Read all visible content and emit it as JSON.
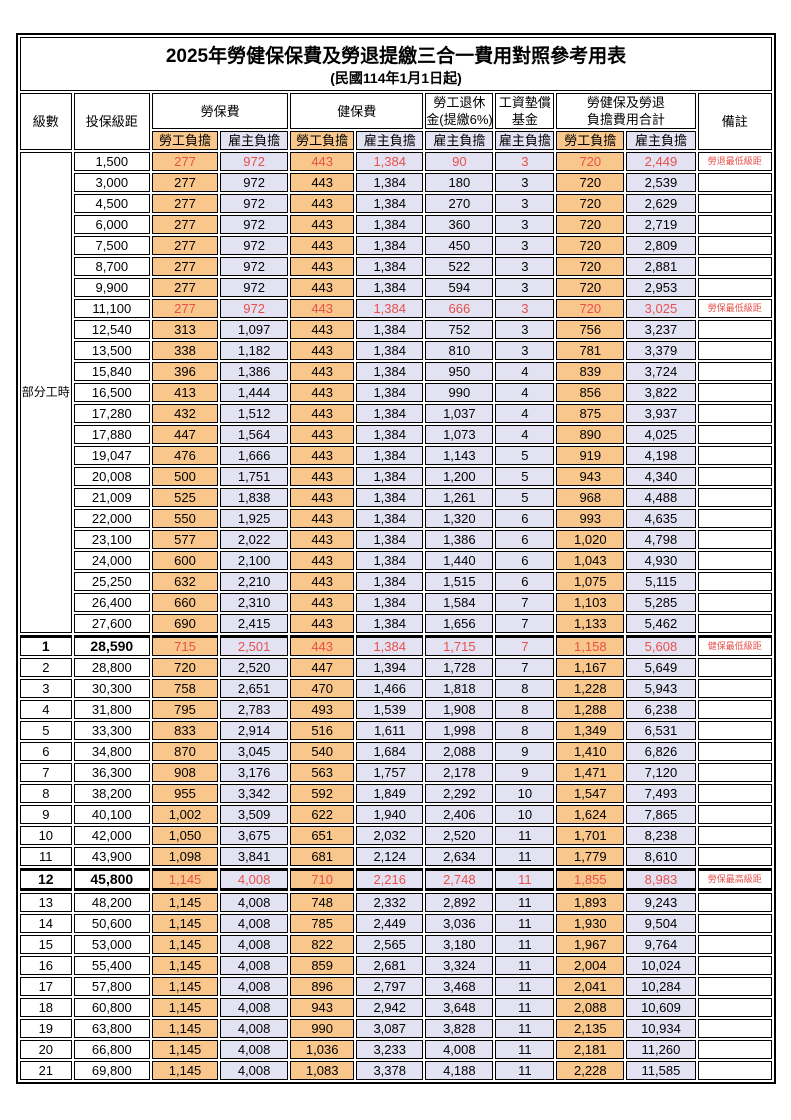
{
  "title": "2025年勞健保保費及勞退提繳三合一費用對照參考用表",
  "subtitle": "(民國114年1月1日起)",
  "colors": {
    "employee_bg": "#F9C78C",
    "employer_bg": "#E3E2F3",
    "highlight_text": "#E8504A"
  },
  "header": {
    "level": "級數",
    "bracket": "投保級距",
    "labor_fee": "勞保費",
    "health_fee": "健保費",
    "pension_line1": "勞工退休",
    "pension_line2": "金(提繳6%)",
    "wage_fund_line1": "工資墊償",
    "wage_fund_line2": "基金",
    "total_line1": "勞健保及勞退",
    "total_line2": "負擔費用合計",
    "remark": "備註",
    "employee": "勞工負擔",
    "employer": "雇主負擔"
  },
  "value_col_types": [
    "employee",
    "employer",
    "employee",
    "employer",
    "employer",
    "employer",
    "employee",
    "employer"
  ],
  "part_time_label": "部分工時",
  "rows": [
    {
      "level": "部分工時",
      "level_rowspan": 23,
      "bracket": "1,500",
      "values": [
        "277",
        "972",
        "443",
        "1,384",
        "90",
        "3",
        "720",
        "2,449"
      ],
      "remark": "勞退最低級距",
      "highlight": true
    },
    {
      "bracket": "3,000",
      "values": [
        "277",
        "972",
        "443",
        "1,384",
        "180",
        "3",
        "720",
        "2,539"
      ]
    },
    {
      "bracket": "4,500",
      "values": [
        "277",
        "972",
        "443",
        "1,384",
        "270",
        "3",
        "720",
        "2,629"
      ]
    },
    {
      "bracket": "6,000",
      "values": [
        "277",
        "972",
        "443",
        "1,384",
        "360",
        "3",
        "720",
        "2,719"
      ]
    },
    {
      "bracket": "7,500",
      "values": [
        "277",
        "972",
        "443",
        "1,384",
        "450",
        "3",
        "720",
        "2,809"
      ]
    },
    {
      "bracket": "8,700",
      "values": [
        "277",
        "972",
        "443",
        "1,384",
        "522",
        "3",
        "720",
        "2,881"
      ]
    },
    {
      "bracket": "9,900",
      "values": [
        "277",
        "972",
        "443",
        "1,384",
        "594",
        "3",
        "720",
        "2,953"
      ]
    },
    {
      "bracket": "11,100",
      "values": [
        "277",
        "972",
        "443",
        "1,384",
        "666",
        "3",
        "720",
        "3,025"
      ],
      "remark": "勞保最低級距",
      "highlight": true
    },
    {
      "bracket": "12,540",
      "values": [
        "313",
        "1,097",
        "443",
        "1,384",
        "752",
        "3",
        "756",
        "3,237"
      ]
    },
    {
      "bracket": "13,500",
      "values": [
        "338",
        "1,182",
        "443",
        "1,384",
        "810",
        "3",
        "781",
        "3,379"
      ]
    },
    {
      "bracket": "15,840",
      "values": [
        "396",
        "1,386",
        "443",
        "1,384",
        "950",
        "4",
        "839",
        "3,724"
      ]
    },
    {
      "bracket": "16,500",
      "values": [
        "413",
        "1,444",
        "443",
        "1,384",
        "990",
        "4",
        "856",
        "3,822"
      ]
    },
    {
      "bracket": "17,280",
      "values": [
        "432",
        "1,512",
        "443",
        "1,384",
        "1,037",
        "4",
        "875",
        "3,937"
      ]
    },
    {
      "bracket": "17,880",
      "values": [
        "447",
        "1,564",
        "443",
        "1,384",
        "1,073",
        "4",
        "890",
        "4,025"
      ]
    },
    {
      "bracket": "19,047",
      "values": [
        "476",
        "1,666",
        "443",
        "1,384",
        "1,143",
        "5",
        "919",
        "4,198"
      ]
    },
    {
      "bracket": "20,008",
      "values": [
        "500",
        "1,751",
        "443",
        "1,384",
        "1,200",
        "5",
        "943",
        "4,340"
      ]
    },
    {
      "bracket": "21,009",
      "values": [
        "525",
        "1,838",
        "443",
        "1,384",
        "1,261",
        "5",
        "968",
        "4,488"
      ]
    },
    {
      "bracket": "22,000",
      "values": [
        "550",
        "1,925",
        "443",
        "1,384",
        "1,320",
        "6",
        "993",
        "4,635"
      ]
    },
    {
      "bracket": "23,100",
      "values": [
        "577",
        "2,022",
        "443",
        "1,384",
        "1,386",
        "6",
        "1,020",
        "4,798"
      ]
    },
    {
      "bracket": "24,000",
      "values": [
        "600",
        "2,100",
        "443",
        "1,384",
        "1,440",
        "6",
        "1,043",
        "4,930"
      ]
    },
    {
      "bracket": "25,250",
      "values": [
        "632",
        "2,210",
        "443",
        "1,384",
        "1,515",
        "6",
        "1,075",
        "5,115"
      ]
    },
    {
      "bracket": "26,400",
      "values": [
        "660",
        "2,310",
        "443",
        "1,384",
        "1,584",
        "7",
        "1,103",
        "5,285"
      ]
    },
    {
      "bracket": "27,600",
      "values": [
        "690",
        "2,415",
        "443",
        "1,384",
        "1,656",
        "7",
        "1,133",
        "5,462"
      ]
    },
    {
      "level": "1",
      "bracket": "28,590",
      "values": [
        "715",
        "2,501",
        "443",
        "1,384",
        "1,715",
        "7",
        "1,158",
        "5,608"
      ],
      "remark": "健保最低級距",
      "highlight": true,
      "bold": true,
      "thick_top": true
    },
    {
      "level": "2",
      "bracket": "28,800",
      "values": [
        "720",
        "2,520",
        "447",
        "1,394",
        "1,728",
        "7",
        "1,167",
        "5,649"
      ]
    },
    {
      "level": "3",
      "bracket": "30,300",
      "values": [
        "758",
        "2,651",
        "470",
        "1,466",
        "1,818",
        "8",
        "1,228",
        "5,943"
      ]
    },
    {
      "level": "4",
      "bracket": "31,800",
      "values": [
        "795",
        "2,783",
        "493",
        "1,539",
        "1,908",
        "8",
        "1,288",
        "6,238"
      ]
    },
    {
      "level": "5",
      "bracket": "33,300",
      "values": [
        "833",
        "2,914",
        "516",
        "1,611",
        "1,998",
        "8",
        "1,349",
        "6,531"
      ]
    },
    {
      "level": "6",
      "bracket": "34,800",
      "values": [
        "870",
        "3,045",
        "540",
        "1,684",
        "2,088",
        "9",
        "1,410",
        "6,826"
      ]
    },
    {
      "level": "7",
      "bracket": "36,300",
      "values": [
        "908",
        "3,176",
        "563",
        "1,757",
        "2,178",
        "9",
        "1,471",
        "7,120"
      ]
    },
    {
      "level": "8",
      "bracket": "38,200",
      "values": [
        "955",
        "3,342",
        "592",
        "1,849",
        "2,292",
        "10",
        "1,547",
        "7,493"
      ]
    },
    {
      "level": "9",
      "bracket": "40,100",
      "values": [
        "1,002",
        "3,509",
        "622",
        "1,940",
        "2,406",
        "10",
        "1,624",
        "7,865"
      ]
    },
    {
      "level": "10",
      "bracket": "42,000",
      "values": [
        "1,050",
        "3,675",
        "651",
        "2,032",
        "2,520",
        "11",
        "1,701",
        "8,238"
      ]
    },
    {
      "level": "11",
      "bracket": "43,900",
      "values": [
        "1,098",
        "3,841",
        "681",
        "2,124",
        "2,634",
        "11",
        "1,779",
        "8,610"
      ]
    },
    {
      "level": "12",
      "bracket": "45,800",
      "values": [
        "1,145",
        "4,008",
        "710",
        "2,216",
        "2,748",
        "11",
        "1,855",
        "8,983"
      ],
      "remark": "勞保最高級距",
      "highlight": true,
      "bold": true,
      "thick_top": true,
      "thick_bottom": true
    },
    {
      "level": "13",
      "bracket": "48,200",
      "values": [
        "1,145",
        "4,008",
        "748",
        "2,332",
        "2,892",
        "11",
        "1,893",
        "9,243"
      ]
    },
    {
      "level": "14",
      "bracket": "50,600",
      "values": [
        "1,145",
        "4,008",
        "785",
        "2,449",
        "3,036",
        "11",
        "1,930",
        "9,504"
      ]
    },
    {
      "level": "15",
      "bracket": "53,000",
      "values": [
        "1,145",
        "4,008",
        "822",
        "2,565",
        "3,180",
        "11",
        "1,967",
        "9,764"
      ]
    },
    {
      "level": "16",
      "bracket": "55,400",
      "values": [
        "1,145",
        "4,008",
        "859",
        "2,681",
        "3,324",
        "11",
        "2,004",
        "10,024"
      ]
    },
    {
      "level": "17",
      "bracket": "57,800",
      "values": [
        "1,145",
        "4,008",
        "896",
        "2,797",
        "3,468",
        "11",
        "2,041",
        "10,284"
      ]
    },
    {
      "level": "18",
      "bracket": "60,800",
      "values": [
        "1,145",
        "4,008",
        "943",
        "2,942",
        "3,648",
        "11",
        "2,088",
        "10,609"
      ]
    },
    {
      "level": "19",
      "bracket": "63,800",
      "values": [
        "1,145",
        "4,008",
        "990",
        "3,087",
        "3,828",
        "11",
        "2,135",
        "10,934"
      ]
    },
    {
      "level": "20",
      "bracket": "66,800",
      "values": [
        "1,145",
        "4,008",
        "1,036",
        "3,233",
        "4,008",
        "11",
        "2,181",
        "11,260"
      ]
    },
    {
      "level": "21",
      "bracket": "69,800",
      "values": [
        "1,145",
        "4,008",
        "1,083",
        "3,378",
        "4,188",
        "11",
        "2,228",
        "11,585"
      ]
    }
  ]
}
